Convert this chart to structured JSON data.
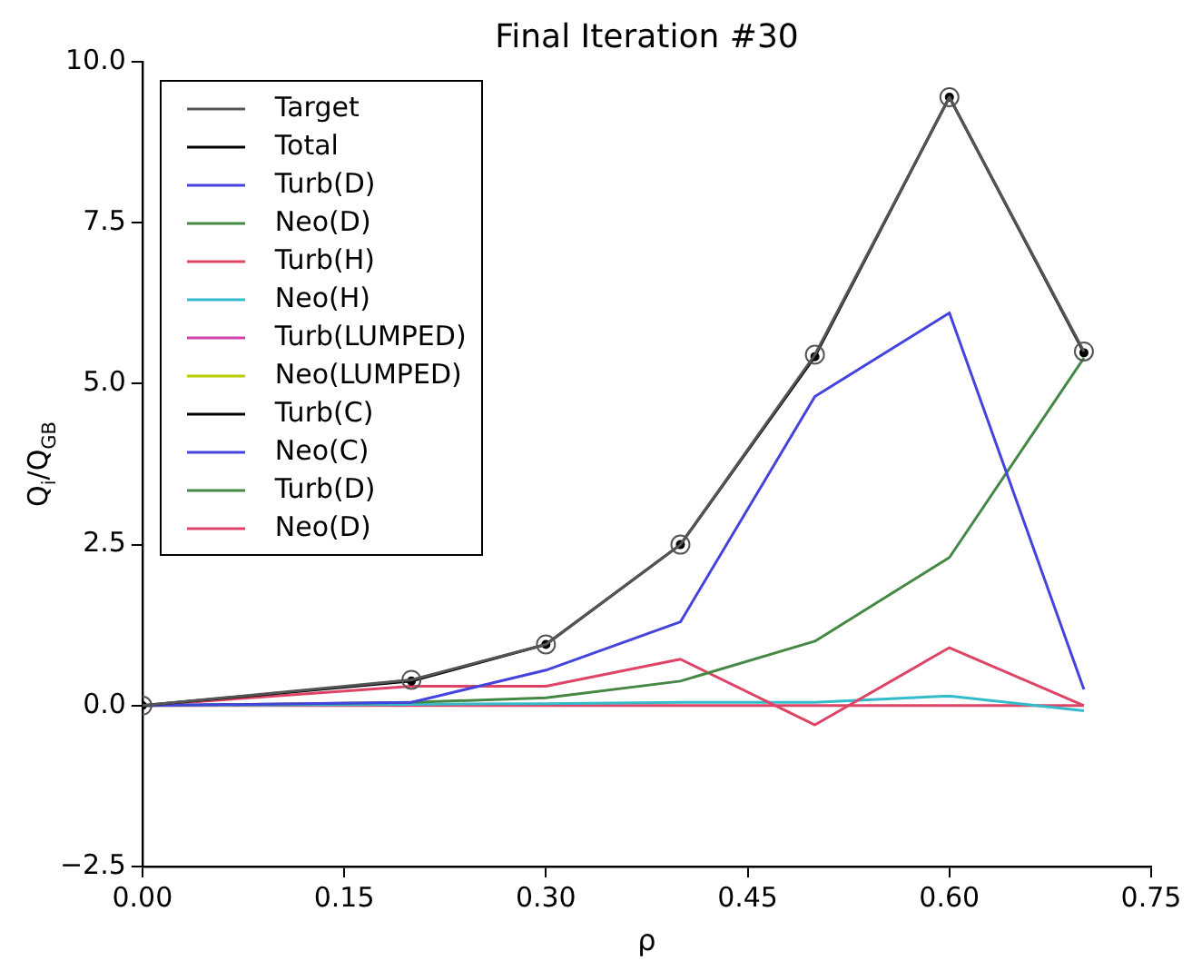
{
  "chart_data": {
    "type": "line",
    "title": "Final Iteration #30",
    "xlabel": "ρ",
    "ylabel": "Q$_{i}$/Q$_{GB}$",
    "x": [
      0,
      0.2,
      0.3,
      0.4,
      0.5,
      0.6,
      0.7
    ],
    "xlim": [
      0,
      0.75
    ],
    "xticks": [
      {
        "value": 0,
        "label": "0.00"
      },
      {
        "value": 0.15,
        "label": "0.15"
      },
      {
        "value": 0.3,
        "label": "0.30"
      },
      {
        "value": 0.45,
        "label": "0.45"
      },
      {
        "value": 0.6,
        "label": "0.60"
      },
      {
        "value": 0.75,
        "label": "0.75"
      }
    ],
    "ylim": [
      -2.5,
      10
    ],
    "yticks": [
      {
        "value": -2.5,
        "label": "−2.5"
      },
      {
        "value": 0,
        "label": "0.0"
      },
      {
        "value": 2.5,
        "label": "2.5"
      },
      {
        "value": 5,
        "label": "5.0"
      },
      {
        "value": 7.5,
        "label": "7.5"
      },
      {
        "value": 10,
        "label": "10.0"
      }
    ],
    "grid": false,
    "legend": "top left",
    "line_style": "solid",
    "series": [
      {
        "name": "Target",
        "color": "#555555",
        "marker": "circle",
        "values": [
          0,
          0.4,
          0.95,
          2.5,
          5.45,
          9.45,
          5.5
        ]
      },
      {
        "name": "Total",
        "color": "#000000",
        "marker": "circle",
        "values": [
          0,
          0.38,
          0.95,
          2.5,
          5.42,
          9.45,
          5.48
        ]
      },
      {
        "name": "Turb(D)",
        "color": "#4444dd",
        "values": [
          0,
          0.05,
          0.55,
          1.3,
          4.8,
          6.1,
          0.25
        ]
      },
      {
        "name": "Neo(D)",
        "color": "#448844",
        "values": [
          0,
          0.05,
          0.12,
          0.38,
          1.0,
          2.3,
          5.4
        ]
      },
      {
        "name": "Turb(H)",
        "color": "#dd4466",
        "values": [
          0,
          0.3,
          0.3,
          0.72,
          -0.3,
          0.9,
          0
        ]
      },
      {
        "name": "Neo(H)",
        "color": "#33bbcc",
        "values": [
          0,
          0.02,
          0.03,
          0.05,
          0.05,
          0.15,
          -0.08
        ]
      },
      {
        "name": "Turb(LUMPED)",
        "color": "#cc44aa",
        "values": [
          null,
          null,
          null,
          null,
          null,
          null,
          null
        ]
      },
      {
        "name": "Neo(LUMPED)",
        "color": "#bbcc00",
        "values": [
          null,
          null,
          null,
          null,
          null,
          null,
          null
        ]
      },
      {
        "name": "Turb(C)",
        "color": "#000000",
        "values": [
          null,
          null,
          null,
          null,
          null,
          null,
          null
        ]
      },
      {
        "name": "Neo(C)",
        "color": "#4444dd",
        "values": [
          null,
          null,
          null,
          null,
          null,
          null,
          null
        ]
      },
      {
        "name": "Turb(D)",
        "color": "#448844",
        "values": [
          null,
          null,
          null,
          null,
          null,
          null,
          null
        ]
      },
      {
        "name": "Neo(D)",
        "color": "#dd4466",
        "values": [
          0,
          0,
          0,
          0,
          0,
          0,
          0
        ]
      }
    ]
  }
}
